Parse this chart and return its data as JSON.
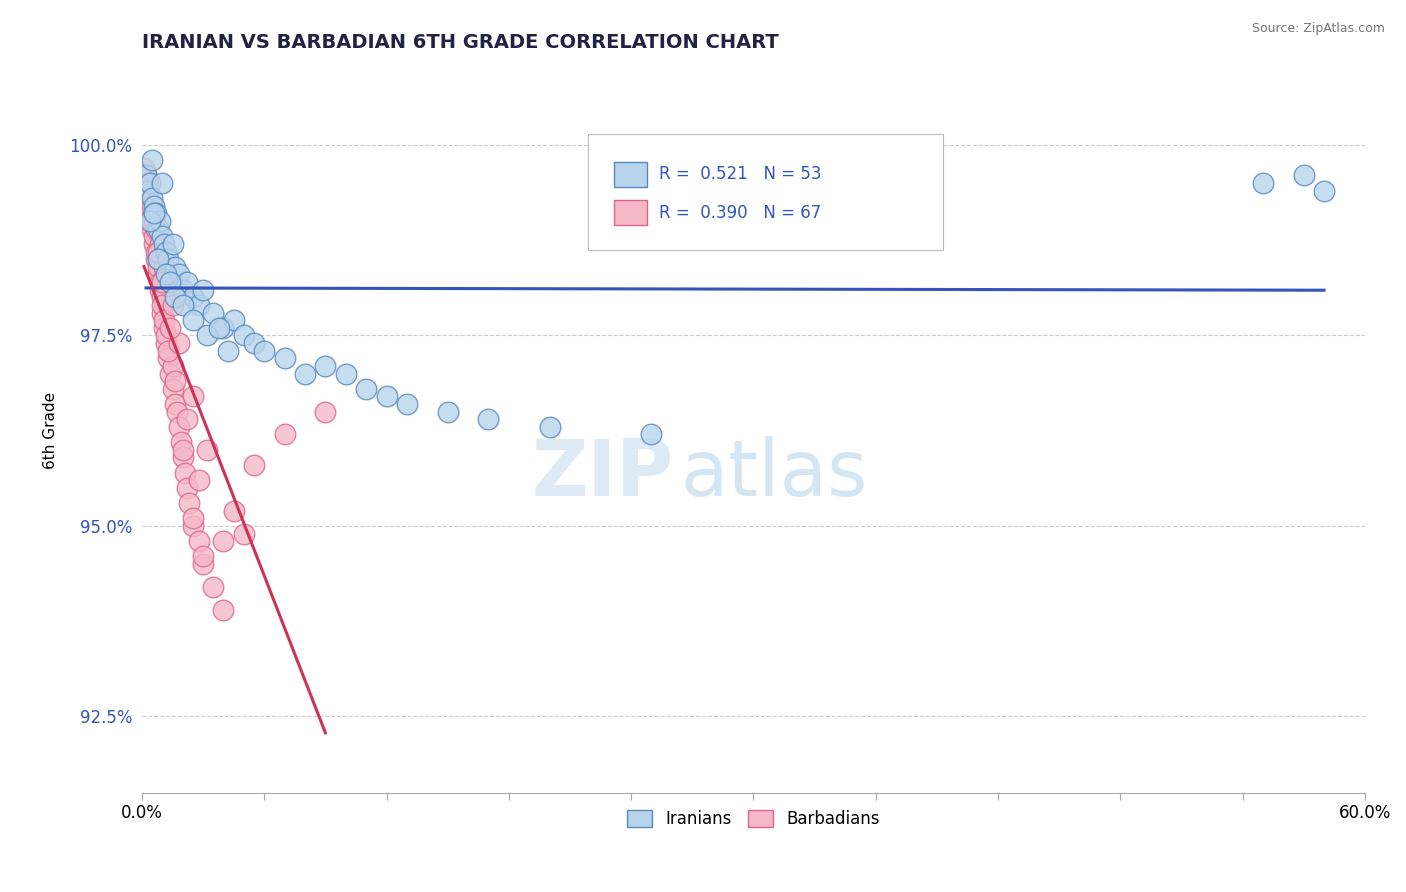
{
  "title": "IRANIAN VS BARBADIAN 6TH GRADE CORRELATION CHART",
  "source_text": "Source: ZipAtlas.com",
  "ylabel": "6th Grade",
  "xlim": [
    0.0,
    60.0
  ],
  "ylim": [
    91.5,
    101.0
  ],
  "yticks": [
    92.5,
    95.0,
    97.5,
    100.0
  ],
  "xticks": [
    0.0,
    6.0,
    12.0,
    18.0,
    24.0,
    30.0,
    36.0,
    42.0,
    48.0,
    54.0,
    60.0
  ],
  "iranian_color": "#b8d4ec",
  "barbadian_color": "#f5b8c8",
  "iranian_edge": "#5588bb",
  "barbadian_edge": "#dd6688",
  "trend_blue": "#3355bb",
  "trend_pink": "#cc3355",
  "R_iranian": 0.521,
  "N_iranian": 53,
  "R_barbadian": 0.39,
  "N_barbadian": 67,
  "watermark_zip": "ZIP",
  "watermark_atlas": "atlas",
  "legend_iranian": "Iranians",
  "legend_barbadian": "Barbadians",
  "iranian_x": [
    0.2,
    0.3,
    0.4,
    0.5,
    0.5,
    0.6,
    0.7,
    0.8,
    0.9,
    1.0,
    1.0,
    1.1,
    1.2,
    1.3,
    1.5,
    1.6,
    1.8,
    2.0,
    2.2,
    2.5,
    2.8,
    3.0,
    3.5,
    4.0,
    4.5,
    5.0,
    5.5,
    6.0,
    7.0,
    8.0,
    9.0,
    10.0,
    11.0,
    12.0,
    13.0,
    15.0,
    17.0,
    20.0,
    25.0,
    0.4,
    0.6,
    0.8,
    1.2,
    1.4,
    1.6,
    2.0,
    2.5,
    3.2,
    4.2,
    55.0,
    57.0,
    58.0,
    3.8
  ],
  "iranian_y": [
    99.6,
    99.4,
    99.5,
    99.3,
    99.8,
    99.2,
    99.1,
    98.9,
    99.0,
    98.8,
    99.5,
    98.7,
    98.6,
    98.5,
    98.7,
    98.4,
    98.3,
    98.1,
    98.2,
    98.0,
    97.9,
    98.1,
    97.8,
    97.6,
    97.7,
    97.5,
    97.4,
    97.3,
    97.2,
    97.0,
    97.1,
    97.0,
    96.8,
    96.7,
    96.6,
    96.5,
    96.4,
    96.3,
    96.2,
    99.0,
    99.1,
    98.5,
    98.3,
    98.2,
    98.0,
    97.9,
    97.7,
    97.5,
    97.3,
    99.5,
    99.6,
    99.4,
    97.6
  ],
  "barbadian_x": [
    0.1,
    0.2,
    0.2,
    0.3,
    0.3,
    0.4,
    0.4,
    0.5,
    0.5,
    0.6,
    0.6,
    0.7,
    0.7,
    0.8,
    0.8,
    0.9,
    0.9,
    1.0,
    1.0,
    1.0,
    1.1,
    1.1,
    1.2,
    1.2,
    1.3,
    1.4,
    1.5,
    1.5,
    1.6,
    1.7,
    1.8,
    1.9,
    2.0,
    2.0,
    2.1,
    2.2,
    2.3,
    2.5,
    2.5,
    2.8,
    3.0,
    3.0,
    3.5,
    4.0,
    1.3,
    1.6,
    2.2,
    2.8,
    0.5,
    0.7,
    0.9,
    1.1,
    1.5,
    1.8,
    2.5,
    3.2,
    4.5,
    5.0,
    0.3,
    0.6,
    0.8,
    1.0,
    1.4,
    4.0,
    5.5,
    7.0,
    9.0
  ],
  "barbadian_y": [
    99.7,
    99.5,
    99.6,
    99.3,
    99.4,
    99.1,
    99.2,
    98.9,
    99.0,
    98.7,
    98.8,
    98.5,
    98.6,
    98.3,
    98.4,
    98.1,
    98.2,
    97.8,
    98.0,
    97.9,
    97.6,
    97.7,
    97.4,
    97.5,
    97.2,
    97.0,
    96.8,
    97.1,
    96.6,
    96.5,
    96.3,
    96.1,
    95.9,
    96.0,
    95.7,
    95.5,
    95.3,
    95.0,
    95.1,
    94.8,
    94.5,
    94.6,
    94.2,
    93.9,
    97.3,
    96.9,
    96.4,
    95.6,
    99.2,
    98.9,
    98.7,
    98.4,
    97.9,
    97.4,
    96.7,
    96.0,
    95.2,
    94.9,
    99.5,
    99.0,
    98.6,
    98.2,
    97.6,
    94.8,
    95.8,
    96.2,
    96.5
  ]
}
